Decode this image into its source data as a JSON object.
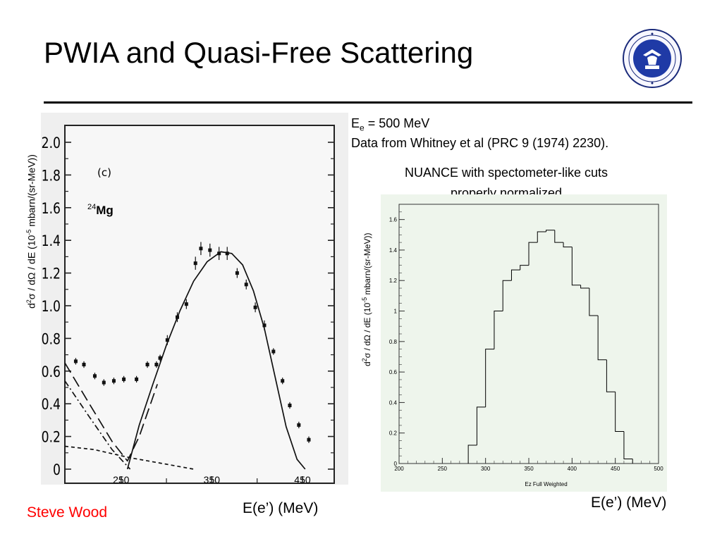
{
  "slide": {
    "title": "PWIA and Quasi-Free Scattering",
    "author": "Steve Wood"
  },
  "notes": {
    "beam_prefix": "E",
    "beam_sub": "e",
    "beam_suffix": " = 500 MeV",
    "source": "Data from Whitney et al (PRC 9 (1974) 2230).",
    "sim_line1": "NUANCE with spectometer-like cuts",
    "sim_line2": "properly normalized"
  },
  "axis_titles": {
    "y_prefix": "d",
    "y_sup1": "2",
    "y_mid": "σ / dΩ / dE (10",
    "y_sup2": "-5",
    "y_suffix": " mbarn/(sr-MeV))",
    "x_left": "E(e’) (MeV)",
    "x_right": "E(e’) (MeV)"
  },
  "chart_data": [
    {
      "type": "scatter",
      "panel_label": "(c)",
      "target_mass": "24",
      "target_symbol": "Mg",
      "x_ticks": [
        "250",
        "350",
        "450"
      ],
      "y_ticks": [
        "0",
        "0.2",
        "0.4",
        "0.6",
        "0.8",
        "1.0",
        "1.2",
        "1.4",
        "1.6",
        "1.8",
        "2.0"
      ],
      "xlim": [
        188,
        485
      ],
      "ylim": [
        0,
        2.0
      ],
      "series": [
        {
          "x": [
            200,
            209,
            221,
            231,
            242,
            253,
            267,
            279,
            289,
            293,
            301,
            312,
            322,
            332,
            338,
            348,
            358,
            367,
            378,
            388,
            398,
            408,
            418,
            428,
            436,
            446,
            457
          ],
          "y": [
            0.66,
            0.64,
            0.57,
            0.53,
            0.54,
            0.55,
            0.55,
            0.64,
            0.64,
            0.68,
            0.79,
            0.93,
            1.01,
            1.26,
            1.35,
            1.34,
            1.32,
            1.32,
            1.2,
            1.13,
            0.99,
            0.88,
            0.72,
            0.54,
            0.39,
            0.27,
            0.18
          ],
          "err": [
            0.02,
            0.02,
            0.02,
            0.02,
            0.02,
            0.02,
            0.02,
            0.02,
            0.02,
            0.02,
            0.03,
            0.03,
            0.03,
            0.04,
            0.04,
            0.04,
            0.04,
            0.04,
            0.03,
            0.03,
            0.03,
            0.03,
            0.02,
            0.02,
            0.02,
            0.02,
            0.02
          ]
        }
      ],
      "curves": [
        {
          "style": "solid",
          "x": [
            257,
            270,
            285,
            300,
            315,
            330,
            345,
            360,
            372,
            384,
            396,
            408,
            420,
            432,
            444,
            453
          ],
          "y": [
            0.0,
            0.27,
            0.52,
            0.76,
            0.97,
            1.15,
            1.27,
            1.33,
            1.32,
            1.25,
            1.09,
            0.86,
            0.56,
            0.26,
            0.06,
            0.0
          ]
        },
        {
          "style": "long-dash",
          "x": [
            188,
            215,
            240,
            257,
            270,
            290
          ],
          "y": [
            0.65,
            0.4,
            0.17,
            0.05,
            0.2,
            0.52
          ]
        },
        {
          "style": "dash-dot",
          "x": [
            188,
            215,
            240,
            260
          ],
          "y": [
            0.54,
            0.32,
            0.12,
            0.0
          ]
        },
        {
          "style": "short-dash",
          "x": [
            188,
            220,
            260,
            300,
            330
          ],
          "y": [
            0.14,
            0.12,
            0.07,
            0.03,
            0.0
          ]
        }
      ]
    },
    {
      "type": "histogram",
      "xlabel": "Ez Full Weighted",
      "x_ticks": [
        "200",
        "250",
        "300",
        "350",
        "400",
        "450",
        "500"
      ],
      "y_ticks": [
        "0",
        "0.2",
        "0.4",
        "0.6",
        "0.8",
        "1",
        "1.2",
        "1.4",
        "1.6"
      ],
      "xlim": [
        200,
        500
      ],
      "ylim": [
        0,
        1.7
      ],
      "bin_edges": [
        280,
        290,
        300,
        310,
        320,
        330,
        340,
        350,
        360,
        370,
        380,
        390,
        400,
        410,
        420,
        430,
        440,
        450,
        460,
        470
      ],
      "values": [
        0.12,
        0.37,
        0.75,
        1.0,
        1.2,
        1.27,
        1.3,
        1.45,
        1.52,
        1.53,
        1.45,
        1.42,
        1.17,
        1.15,
        0.97,
        0.68,
        0.47,
        0.21,
        0.03
      ]
    }
  ]
}
